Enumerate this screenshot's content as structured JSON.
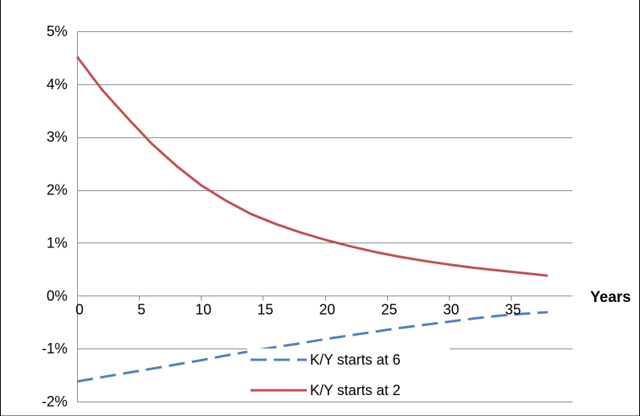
{
  "chart_data": {
    "type": "line",
    "title": "",
    "xlabel": "Years",
    "ylabel": "",
    "xlim": [
      0,
      40
    ],
    "ylim": [
      -0.02,
      0.05
    ],
    "x_ticks": [
      0,
      5,
      10,
      15,
      20,
      25,
      30,
      35
    ],
    "x_tick_labels": [
      "0",
      "5",
      "10",
      "15",
      "20",
      "25",
      "30",
      "35"
    ],
    "y_ticks": [
      -0.02,
      -0.01,
      0,
      0.01,
      0.02,
      0.03,
      0.04,
      0.05
    ],
    "y_tick_labels": [
      "-2%",
      "-1%",
      "0%",
      "1%",
      "2%",
      "3%",
      "4%",
      "5%"
    ],
    "grid": true,
    "legend_position": "bottom-center",
    "x": [
      0,
      2,
      4,
      6,
      8,
      10,
      12,
      14,
      16,
      18,
      20,
      22,
      24,
      26,
      28,
      30,
      32,
      34,
      36,
      38
    ],
    "series": [
      {
        "name": "K/Y starts at 6",
        "style": "dashed",
        "color": "#4F81BD",
        "values": [
          -0.0162,
          -0.0154,
          -0.0146,
          -0.0138,
          -0.013,
          -0.0122,
          -0.0113,
          -0.0105,
          -0.0097,
          -0.009,
          -0.0082,
          -0.0075,
          -0.0068,
          -0.0061,
          -0.0055,
          -0.0049,
          -0.0043,
          -0.0038,
          -0.0034,
          -0.0031
        ]
      },
      {
        "name": "K/Y starts at 2",
        "style": "solid",
        "color": "#C0504D",
        "values": [
          0.0452,
          0.039,
          0.0338,
          0.0288,
          0.0246,
          0.0209,
          0.018,
          0.0155,
          0.0136,
          0.012,
          0.0106,
          0.0094,
          0.0083,
          0.0074,
          0.0066,
          0.0059,
          0.0053,
          0.0048,
          0.0043,
          0.0038
        ]
      }
    ]
  }
}
